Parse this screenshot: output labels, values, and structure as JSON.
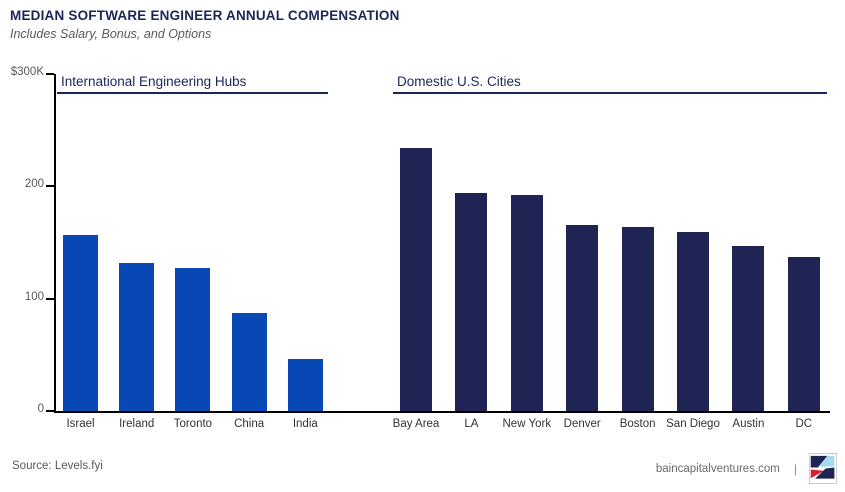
{
  "header": {
    "title": "MEDIAN SOFTWARE ENGINEER ANNUAL COMPENSATION",
    "subtitle": "Includes Salary, Bonus, and Options"
  },
  "footer": {
    "source": "Source: Levels.fyi",
    "site": "baincapitalventures.com",
    "separator": "|"
  },
  "colors": {
    "international_bar": "#0848b4",
    "domestic_bar": "#1f2455",
    "navy_text": "#1b2558",
    "gray_text": "#595959",
    "axis": "#000000",
    "logo_navy": "#1f2455",
    "logo_lightblue": "#a7d9ec",
    "logo_red": "#d7212e"
  },
  "chart_data": {
    "type": "bar",
    "title": "MEDIAN SOFTWARE ENGINEER ANNUAL COMPENSATION",
    "subtitle": "Includes Salary, Bonus, and Options",
    "unit": "USD thousands per year",
    "ylim": [
      0,
      300
    ],
    "grid": false,
    "legend": "none",
    "yticks": [
      {
        "value": 300,
        "label": "$300K"
      },
      {
        "value": 200,
        "label": "200"
      },
      {
        "value": 100,
        "label": "100"
      },
      {
        "value": 0,
        "label": "0"
      }
    ],
    "groups": [
      {
        "name": "International Engineering Hubs",
        "color": "#0848b4",
        "categories": [
          "Israel",
          "Ireland",
          "Toronto",
          "China",
          "India"
        ],
        "values": [
          157,
          132,
          127,
          87,
          46
        ]
      },
      {
        "name": "Domestic U.S. Cities",
        "color": "#1f2455",
        "categories": [
          "Bay Area",
          "LA",
          "New York",
          "Denver",
          "Boston",
          "San Diego",
          "Austin",
          "DC"
        ],
        "values": [
          234,
          194,
          192,
          166,
          164,
          159,
          147,
          137
        ]
      }
    ]
  }
}
